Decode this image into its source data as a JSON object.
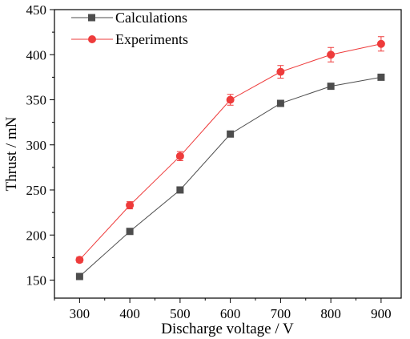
{
  "chart_data": {
    "type": "line",
    "xlabel": "Discharge voltage / V",
    "ylabel": "Thrust / mN",
    "xlim": [
      250,
      940
    ],
    "ylim": [
      130,
      450
    ],
    "xticks": [
      300,
      400,
      500,
      600,
      700,
      800,
      900
    ],
    "yticks": [
      150,
      200,
      250,
      300,
      350,
      400,
      450
    ],
    "grid": false,
    "legend_position": "top-left",
    "series": [
      {
        "name": "Calculations",
        "color": "#4d4d4d",
        "marker": "square",
        "x": [
          300,
          400,
          500,
          600,
          700,
          800,
          900
        ],
        "y": [
          154,
          204,
          250,
          312,
          346,
          365,
          375
        ]
      },
      {
        "name": "Experiments",
        "color": "#ee3b3b",
        "marker": "circle",
        "x": [
          300,
          400,
          500,
          600,
          700,
          800,
          900
        ],
        "y": [
          172.5,
          233,
          287.5,
          350,
          381,
          400,
          412
        ],
        "error": [
          3,
          4,
          5,
          6,
          7,
          8,
          8
        ]
      }
    ]
  }
}
